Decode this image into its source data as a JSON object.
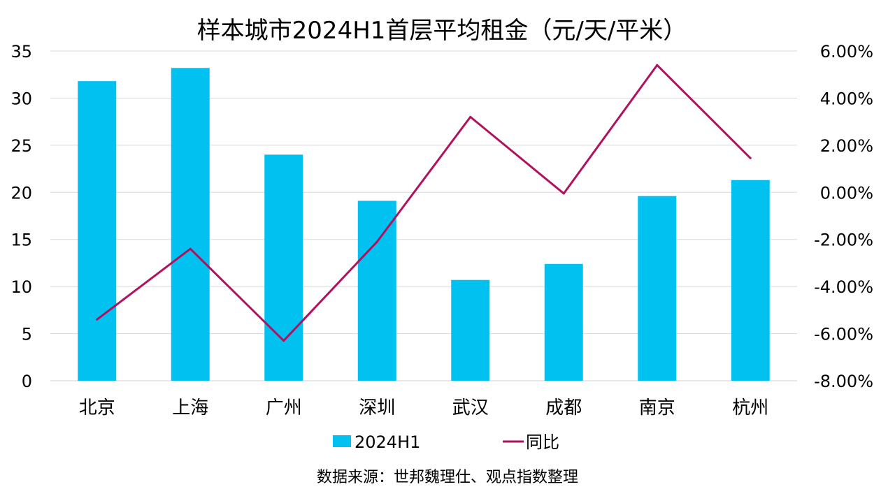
{
  "chart_data": {
    "type": "bar",
    "title": "样本城市2024H1首层平均租金（元/天/平米）",
    "categories": [
      "北京",
      "上海",
      "广州",
      "深圳",
      "武汉",
      "成都",
      "南京",
      "杭州"
    ],
    "series": [
      {
        "name": "2024H1",
        "type": "bar",
        "axis": "left",
        "color": "#00C1F0",
        "values": [
          31.8,
          33.2,
          24.0,
          19.1,
          10.7,
          12.4,
          19.6,
          21.3
        ]
      },
      {
        "name": "同比",
        "type": "line",
        "axis": "right",
        "color": "#B0125E",
        "values": [
          -5.4,
          -2.4,
          -6.3,
          -2.1,
          3.2,
          -0.05,
          5.4,
          1.45
        ]
      }
    ],
    "y_left": {
      "lim": [
        0,
        35
      ],
      "ticks": [
        0,
        5,
        10,
        15,
        20,
        25,
        30,
        35
      ],
      "tick_labels": [
        "0",
        "5",
        "10",
        "15",
        "20",
        "25",
        "30",
        "35"
      ]
    },
    "y_right": {
      "lim": [
        -8,
        6
      ],
      "ticks": [
        -8,
        -6,
        -4,
        -2,
        0,
        2,
        4,
        6
      ],
      "tick_labels": [
        "-8.00%",
        "-6.00%",
        "-4.00%",
        "-2.00%",
        "0.00%",
        "2.00%",
        "4.00%",
        "6.00%"
      ]
    },
    "grid": true,
    "legend": "bottom",
    "source": "数据来源：世邦魏理仕、观点指数整理"
  }
}
